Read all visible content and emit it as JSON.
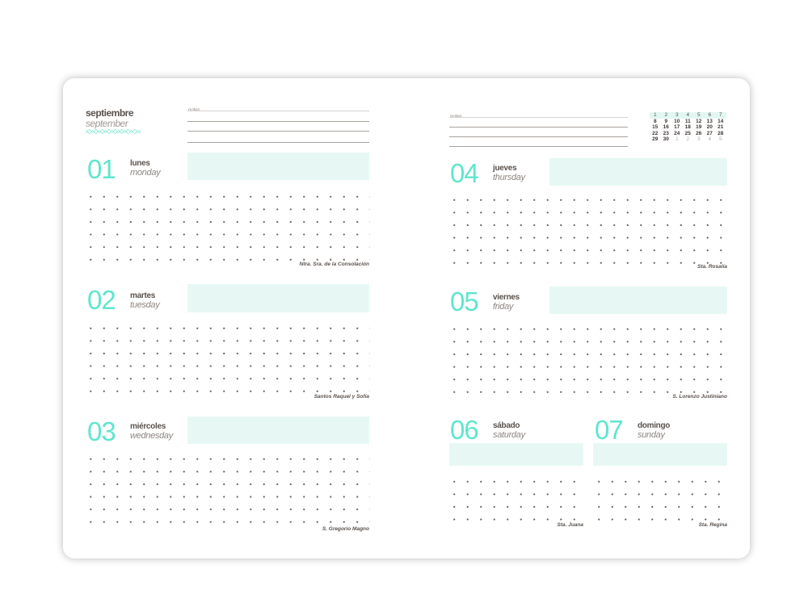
{
  "month": {
    "es": "septiembre",
    "en": "september"
  },
  "notes_label": "notes",
  "days": [
    {
      "num": "01",
      "es": "lunes",
      "en": "monday",
      "saint": "Ntra. Sra. de la Consolación"
    },
    {
      "num": "02",
      "es": "martes",
      "en": "tuesday",
      "saint": "Santos Raquel y Sofía"
    },
    {
      "num": "03",
      "es": "miércoles",
      "en": "wednesday",
      "saint": "S. Gregorio Magno"
    },
    {
      "num": "04",
      "es": "jueves",
      "en": "thursday",
      "saint": "Sta. Rosalía"
    },
    {
      "num": "05",
      "es": "viernes",
      "en": "friday",
      "saint": "S. Lorenzo Justiniano"
    },
    {
      "num": "06",
      "es": "sábado",
      "en": "saturday",
      "saint": "Sta. Juana"
    },
    {
      "num": "07",
      "es": "domingo",
      "en": "sunday",
      "saint": "Sta. Regina"
    }
  ],
  "mini_calendar": {
    "rows": [
      [
        "1",
        "2",
        "3",
        "4",
        "5",
        "6",
        "7"
      ],
      [
        "8",
        "9",
        "10",
        "11",
        "12",
        "13",
        "14"
      ],
      [
        "15",
        "16",
        "17",
        "18",
        "19",
        "20",
        "21"
      ],
      [
        "22",
        "23",
        "24",
        "25",
        "26",
        "27",
        "28"
      ],
      [
        "29",
        "30",
        "1",
        "2",
        "3",
        "4",
        "5"
      ]
    ]
  },
  "colors": {
    "accent": "#5fe6cd",
    "box": "#e7f8f4",
    "text": "#5a524d"
  }
}
